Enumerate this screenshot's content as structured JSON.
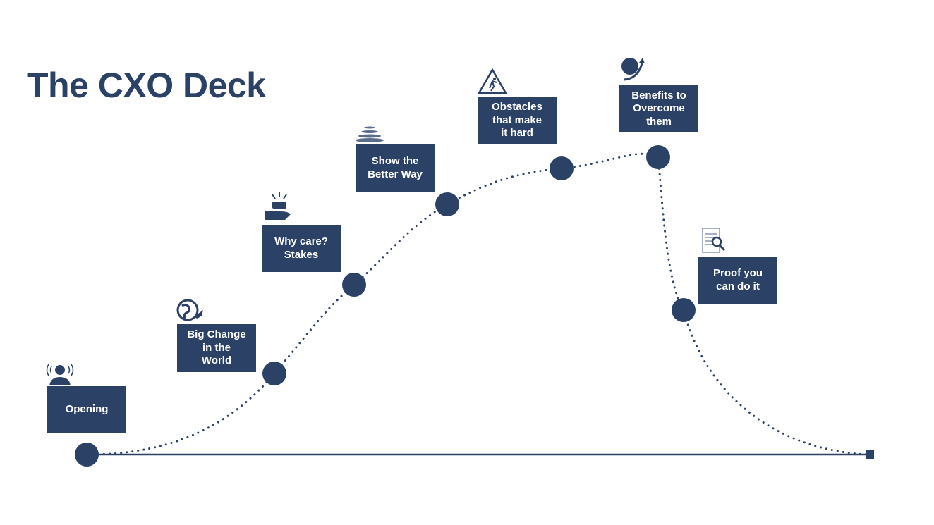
{
  "title": "The CXO Deck",
  "colors": {
    "primary": "#2c4166",
    "background": "#ffffff"
  },
  "stages": [
    {
      "label": "Opening",
      "icon": "speaking-person-icon"
    },
    {
      "label": "Big Change\nin the\nWorld",
      "icon": "globe-arrow-icon"
    },
    {
      "label": "Why care?\nStakes",
      "icon": "hand-with-money-icon"
    },
    {
      "label": "Show the\nBetter Way",
      "icon": "perspective-grid-icon"
    },
    {
      "label": "Obstacles\nthat make\nit hard",
      "icon": "warning-sign-icon"
    },
    {
      "label": "Benefits to\nOvercome\nthem",
      "icon": "ball-with-arrow-icon"
    },
    {
      "label": "Proof you\ncan do it",
      "icon": "document-magnifier-icon"
    }
  ]
}
